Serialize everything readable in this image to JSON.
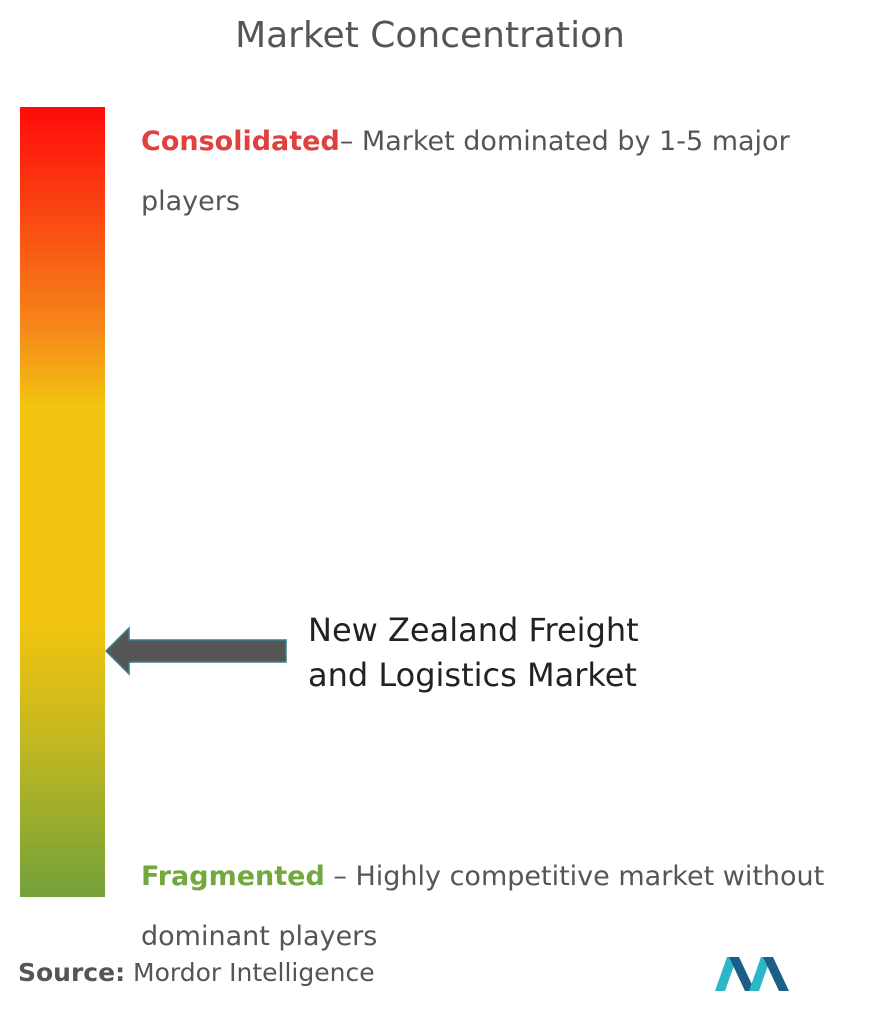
{
  "title": "Market Concentration",
  "consolidated": {
    "label": "Consolidated",
    "description": "– Market dominated by 1-5 major players"
  },
  "fragmented": {
    "label": "Fragmented",
    "description": " – Highly competitive market without dominant players"
  },
  "market": {
    "label": "New Zealand Freight and Logistics Market"
  },
  "source": {
    "label": "Source:",
    "text": " Mordor Intelligence"
  }
}
